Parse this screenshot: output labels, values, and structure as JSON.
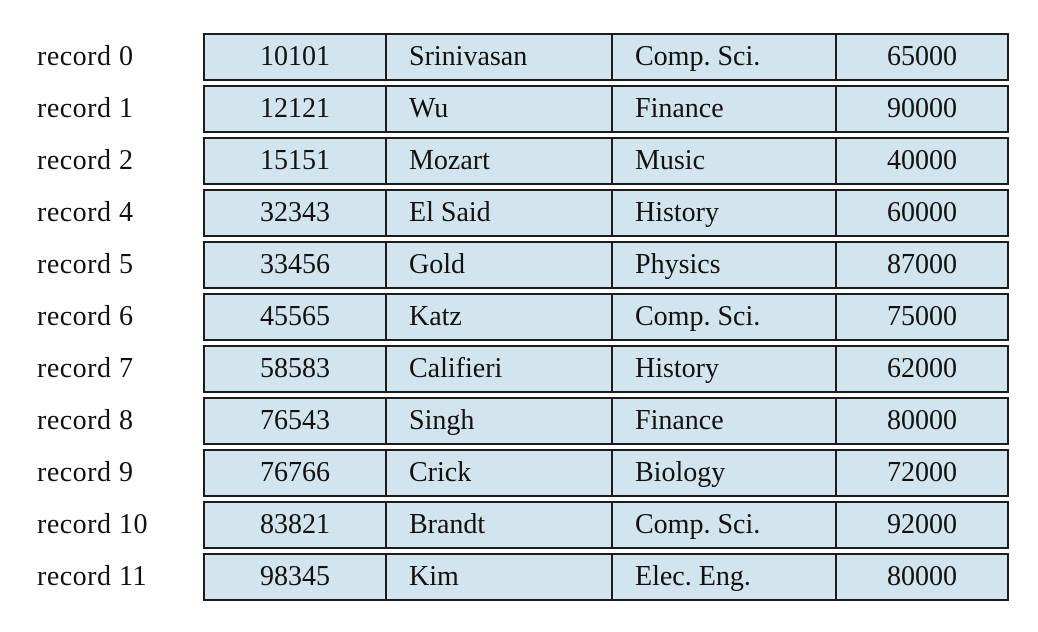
{
  "figure": {
    "description": "File of instructor records with record 3 deleted",
    "background_color": "#ffffff",
    "cell_fill_color": "#d2e4ee",
    "border_color": "#1c1c1c"
  },
  "table": {
    "rows": [
      {
        "label": "record 0",
        "cells": [
          "10101",
          "Srinivasan",
          "Comp. Sci.",
          "65000"
        ]
      },
      {
        "label": "record 1",
        "cells": [
          "12121",
          "Wu",
          "Finance",
          "90000"
        ]
      },
      {
        "label": "record 2",
        "cells": [
          "15151",
          "Mozart",
          "Music",
          "40000"
        ]
      },
      {
        "label": "record 4",
        "cells": [
          "32343",
          "El Said",
          "History",
          "60000"
        ]
      },
      {
        "label": "record 5",
        "cells": [
          "33456",
          "Gold",
          "Physics",
          "87000"
        ]
      },
      {
        "label": "record 6",
        "cells": [
          "45565",
          "Katz",
          "Comp. Sci.",
          "75000"
        ]
      },
      {
        "label": "record 7",
        "cells": [
          "58583",
          "Califieri",
          "History",
          "62000"
        ]
      },
      {
        "label": "record 8",
        "cells": [
          "76543",
          "Singh",
          "Finance",
          "80000"
        ]
      },
      {
        "label": "record 9",
        "cells": [
          "76766",
          "Crick",
          "Biology",
          "72000"
        ]
      },
      {
        "label": "record 10",
        "cells": [
          "83821",
          "Brandt",
          "Comp. Sci.",
          "92000"
        ]
      },
      {
        "label": "record 11",
        "cells": [
          "98345",
          "Kim",
          "Elec. Eng.",
          "80000"
        ]
      }
    ]
  }
}
